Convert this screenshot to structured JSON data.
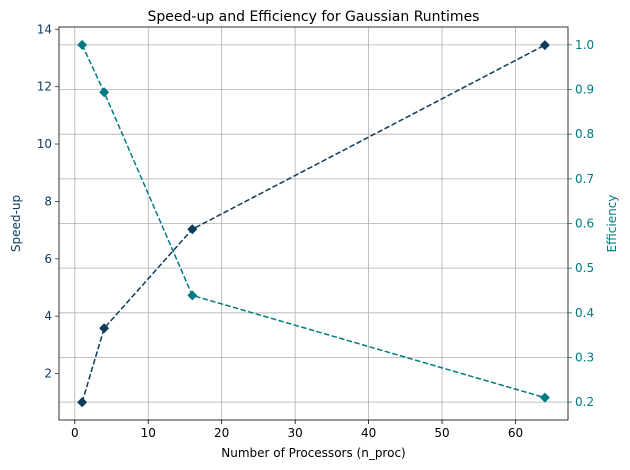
{
  "chart_data": {
    "type": "line",
    "title": "Speed-up and Efficiency for Gaussian Runtimes",
    "xlabel": "Number of Processors (n_proc)",
    "ylabel_left": "Speed-up",
    "ylabel_right": "Efficiency",
    "x": [
      1,
      4,
      16,
      64
    ],
    "xlim": [
      -2.15,
      67.15
    ],
    "ylim_left": [
      0.38,
      14.08
    ],
    "ylim_right": [
      0.16,
      1.04
    ],
    "x_ticks": [
      0,
      10,
      20,
      30,
      40,
      50,
      60
    ],
    "y_left_ticks": [
      2,
      4,
      6,
      8,
      10,
      12,
      14
    ],
    "y_right_ticks": [
      0.2,
      0.3,
      0.4,
      0.5,
      0.6,
      0.7,
      0.8,
      0.9,
      1.0
    ],
    "grid": true,
    "series": [
      {
        "name": "Speed-up",
        "axis": "left",
        "values": [
          1.0,
          3.58,
          7.03,
          13.45
        ],
        "color": "#0d3b5c",
        "marker": "diamond",
        "linestyle": "dashed"
      },
      {
        "name": "Efficiency",
        "axis": "right",
        "values": [
          1.0,
          0.894,
          0.439,
          0.21
        ],
        "color": "#007b83",
        "marker": "diamond",
        "linestyle": "dashed"
      }
    ]
  }
}
